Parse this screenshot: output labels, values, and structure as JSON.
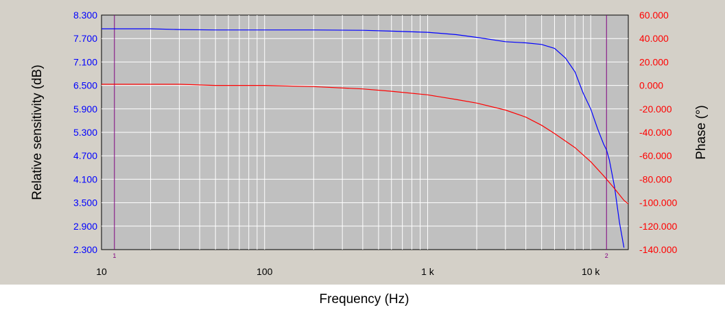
{
  "chart_data": {
    "type": "line",
    "xlabel": "Frequency (Hz)",
    "ylabel_left": "Relative sensitivity (dB)",
    "ylabel_right": "Phase (°)",
    "x_scale": "log",
    "xlim": [
      10,
      17000
    ],
    "ylim_left": [
      2.3,
      8.3
    ],
    "ylim_right": [
      -140,
      60
    ],
    "x_ticks": [
      {
        "value": 10,
        "label": "10"
      },
      {
        "value": 100,
        "label": "100"
      },
      {
        "value": 1000,
        "label": "1 k"
      },
      {
        "value": 10000,
        "label": "10 k"
      }
    ],
    "y_ticks_left": [
      "8.300",
      "7.700",
      "7.100",
      "6.500",
      "5.900",
      "5.300",
      "4.700",
      "4.100",
      "3.500",
      "2.900",
      "2.300"
    ],
    "y_ticks_right": [
      "60.000",
      "40.000",
      "20.000",
      "0.000",
      "-20.000",
      "-40.000",
      "-60.000",
      "-80.000",
      "-100.000",
      "-120.000",
      "-140.000"
    ],
    "grid": true,
    "markers": [
      {
        "label": "1",
        "x": 12
      },
      {
        "label": "2",
        "x": 12500
      }
    ],
    "series": [
      {
        "axis": "left",
        "color": "#0000ff",
        "points": [
          [
            10,
            7.95
          ],
          [
            20,
            7.95
          ],
          [
            30,
            7.93
          ],
          [
            50,
            7.92
          ],
          [
            100,
            7.92
          ],
          [
            200,
            7.92
          ],
          [
            400,
            7.91
          ],
          [
            600,
            7.89
          ],
          [
            1000,
            7.86
          ],
          [
            1500,
            7.8
          ],
          [
            2000,
            7.73
          ],
          [
            3000,
            7.62
          ],
          [
            4000,
            7.59
          ],
          [
            5000,
            7.55
          ],
          [
            6000,
            7.45
          ],
          [
            7000,
            7.2
          ],
          [
            8000,
            6.85
          ],
          [
            9000,
            6.3
          ],
          [
            10000,
            5.9
          ],
          [
            11000,
            5.4
          ],
          [
            12000,
            5.0
          ],
          [
            12500,
            4.85
          ],
          [
            13000,
            4.6
          ],
          [
            14000,
            3.9
          ],
          [
            15000,
            3.0
          ],
          [
            16000,
            2.35
          ]
        ]
      },
      {
        "axis": "right",
        "color": "#ff0000",
        "points": [
          [
            10,
            1
          ],
          [
            30,
            1
          ],
          [
            50,
            0
          ],
          [
            100,
            0
          ],
          [
            200,
            -1
          ],
          [
            400,
            -3
          ],
          [
            600,
            -5
          ],
          [
            1000,
            -8
          ],
          [
            1500,
            -12
          ],
          [
            2000,
            -15
          ],
          [
            3000,
            -21
          ],
          [
            4000,
            -27
          ],
          [
            5000,
            -34
          ],
          [
            6000,
            -41
          ],
          [
            8000,
            -53
          ],
          [
            10000,
            -65
          ],
          [
            12000,
            -77
          ],
          [
            14000,
            -88
          ],
          [
            16000,
            -98
          ],
          [
            17000,
            -101
          ]
        ]
      }
    ]
  }
}
